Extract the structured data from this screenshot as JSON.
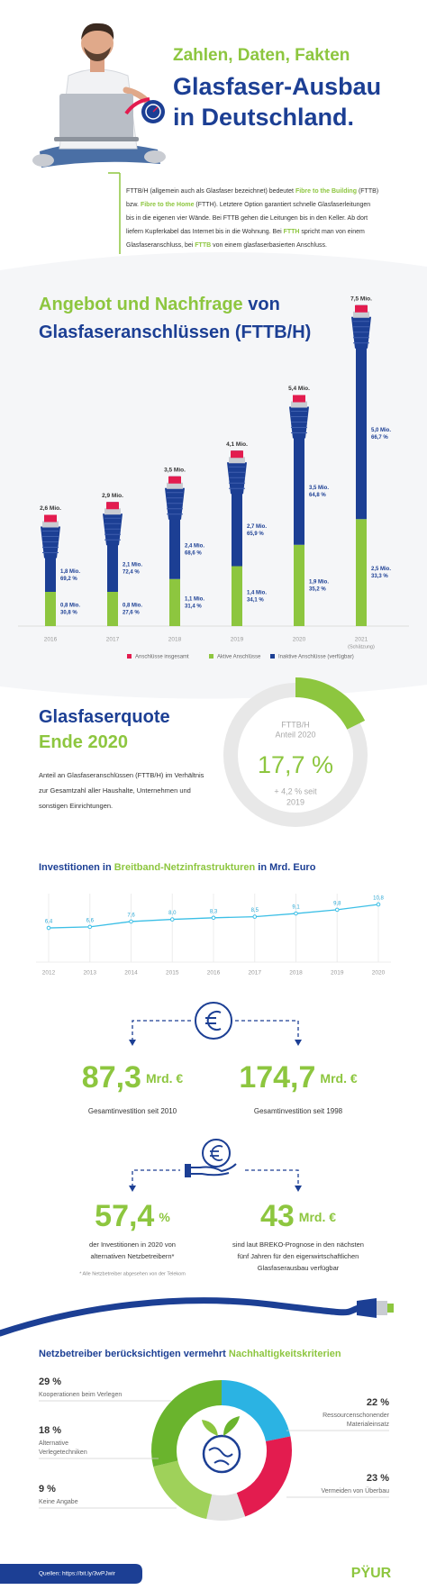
{
  "header": {
    "kicker": "Zahlen, Daten, Fakten",
    "title_lines": [
      "Glasfaser-Ausbau",
      "in Deutschland."
    ]
  },
  "intro": {
    "lines": [
      [
        {
          "text": "FTTB/H (allgemein auch als Glasfaser bezeichnet) bedeutet "
        },
        {
          "text": "Fibre to the Building",
          "highlight": true
        },
        {
          "text": " (FTTB)"
        }
      ],
      [
        {
          "text": "bzw. "
        },
        {
          "text": "Fibre to the Home",
          "highlight": true
        },
        {
          "text": " (FTTH). Letztere Option garantiert schnelle Glasfaserleitungen"
        }
      ],
      [
        {
          "text": "bis in die eigenen vier Wände. Bei FTTB gehen die Leitungen bis in den Keller. Ab dort"
        }
      ],
      [
        {
          "text": "liefern Kupferkabel das Internet bis in die Wohnung. Bei "
        },
        {
          "text": "FTTH",
          "highlight": true
        },
        {
          "text": " spricht man von einem"
        }
      ],
      [
        {
          "text": "Glasfaseranschluss, bei "
        },
        {
          "text": "FTTB",
          "highlight": true
        },
        {
          "text": " von einem glasfaserbasierten Anschluss."
        }
      ]
    ]
  },
  "chart_data": [
    {
      "type": "bar",
      "title_lines": [
        [
          {
            "text": "Angebot und Nachfrage",
            "highlight": true
          },
          {
            "text": " von"
          }
        ],
        [
          {
            "text": "Glasfaseranschlüssen (FTTB/H)"
          }
        ]
      ],
      "categories": [
        "2016",
        "2017",
        "2018",
        "2019",
        "2020",
        "2021"
      ],
      "estimate_label": "(Schätzung)",
      "total": {
        "name": "Anschlüsse insgesamt",
        "color": "#e31c4f",
        "values": [
          2.6,
          2.9,
          3.5,
          4.1,
          5.4,
          7.5
        ],
        "value_labels": [
          "2,6 Mio.",
          "2,9 Mio.",
          "3,5 Mio.",
          "4,1 Mio.",
          "5,4 Mio.",
          "7,5 Mio."
        ]
      },
      "series": [
        {
          "name": "Aktive Anschlüsse",
          "color": "#8dc63f",
          "values": [
            0.8,
            0.8,
            1.1,
            1.4,
            1.9,
            2.5
          ],
          "value_labels": [
            "0,8 Mio.",
            "0,8 Mio.",
            "1,1 Mio.",
            "1,4 Mio.",
            "1,9 Mio.",
            "2,5 Mio."
          ],
          "shares": [
            30.8,
            27.6,
            31.4,
            34.1,
            35.2,
            33.3
          ],
          "share_labels": [
            "30,8 %",
            "27,6 %",
            "31,4 %",
            "34,1 %",
            "35,2 %",
            "33,3 %"
          ]
        },
        {
          "name": "Inaktive Anschlüsse (verfügbar)",
          "color": "#1c3f94",
          "values": [
            1.8,
            2.1,
            2.4,
            2.7,
            3.5,
            5.0
          ],
          "value_labels": [
            "1,8 Mio.",
            "2,1 Mio.",
            "2,4 Mio.",
            "2,7 Mio.",
            "3,5 Mio.",
            "5,0 Mio."
          ],
          "shares": [
            69.2,
            72.4,
            68.6,
            65.9,
            64.8,
            66.7
          ],
          "share_labels": [
            "69,2 %",
            "72,4 %",
            "68,6 %",
            "65,9 %",
            "64,8 %",
            "66,7 %"
          ]
        }
      ],
      "ylim": [
        0,
        8
      ]
    },
    {
      "type": "gauge",
      "title_lines": [
        [
          {
            "text": "Glasfaserquote"
          }
        ],
        [
          {
            "text": "Ende 2020",
            "highlight": true
          }
        ]
      ],
      "text_lines": [
        "Anteil an Glasfaseranschlüssen (FTTB/H) im Verhältnis",
        "zur Gesamtzahl aller Haushalte, Unternehmen und",
        "sonstigen Einrichtungen."
      ],
      "inner_label_lines": [
        "FTTB/H",
        "Anteil 2020"
      ],
      "value": 17.7,
      "value_label": "17,7 %",
      "change_lines": [
        "+ 4,2 % seit",
        "2019"
      ],
      "ylim": [
        0,
        100
      ],
      "color": "#8dc63f",
      "track_color": "#e8e8e8"
    },
    {
      "type": "line",
      "title": [
        {
          "text": "Investitionen in "
        },
        {
          "text": "Breitband-Netzinfrastrukturen",
          "highlight": true
        },
        {
          "text": " in Mrd. Euro"
        }
      ],
      "categories": [
        "2012",
        "2013",
        "2014",
        "2015",
        "2016",
        "2017",
        "2018",
        "2019",
        "2020"
      ],
      "values": [
        6.4,
        6.6,
        7.6,
        8.0,
        8.3,
        8.5,
        9.1,
        9.8,
        10.8
      ],
      "value_labels": [
        "6,4",
        "6,6",
        "7,6",
        "8,0",
        "8,3",
        "8,5",
        "9,1",
        "9,8",
        "10,8"
      ],
      "color": "#3cbfe6",
      "ylim": [
        0,
        14
      ],
      "grid": true
    },
    {
      "type": "donut",
      "title": [
        {
          "text": "Netzbetreiber berücksichtigen vermehrt "
        },
        {
          "text": "Nachhaltigkeitskriterien",
          "highlight": true
        }
      ],
      "categories": [
        [
          "Ressourcenschonender",
          "Materialeinsatz"
        ],
        [
          "Vermeiden von Überbau"
        ],
        [
          "Keine Angabe"
        ],
        [
          "Alternative",
          "Verlegetechniken"
        ],
        [
          "Kooperationen beim Verlegen"
        ]
      ],
      "values": [
        22,
        23,
        9,
        18,
        29
      ],
      "value_labels": [
        "22 %",
        "23 %",
        "9 %",
        "18 %",
        "29 %"
      ],
      "colors": [
        "#2bb3e3",
        "#e31c4f",
        "#e3e3e3",
        "#9fd15a",
        "#6ab42d"
      ],
      "label_colors": [
        "#2bb3e3",
        "#e31c4f",
        "#222222",
        "#8dc63f",
        "#5aa62a"
      ]
    }
  ],
  "investments": [
    {
      "value_label": "87,3",
      "unit": "Mrd. €",
      "caption": "Gesamtinvestition seit 2010"
    },
    {
      "value_label": "174,7",
      "unit": "Mrd. €",
      "caption": "Gesamtinvestition seit 1998"
    }
  ],
  "outlook": [
    {
      "value_label": "57,4",
      "unit": "%",
      "caption_lines": [
        "der Investitionen in 2020 von",
        "alternativen Netzbetreibern*"
      ]
    },
    {
      "value_label": "43",
      "unit": "Mrd. €",
      "caption_lines": [
        "sind laut BREKO-Prognose in den nächsten",
        "fünf Jahren für den eigenwirtschaftlichen",
        "Glasfaserausbau verfügbar"
      ]
    }
  ],
  "footnote": "* Alle Netzbetreiber abgesehen von der Telekom",
  "footer": {
    "sources": "Quellen:  https://bit.ly/3wPJwir",
    "logo": "PŸUR"
  }
}
